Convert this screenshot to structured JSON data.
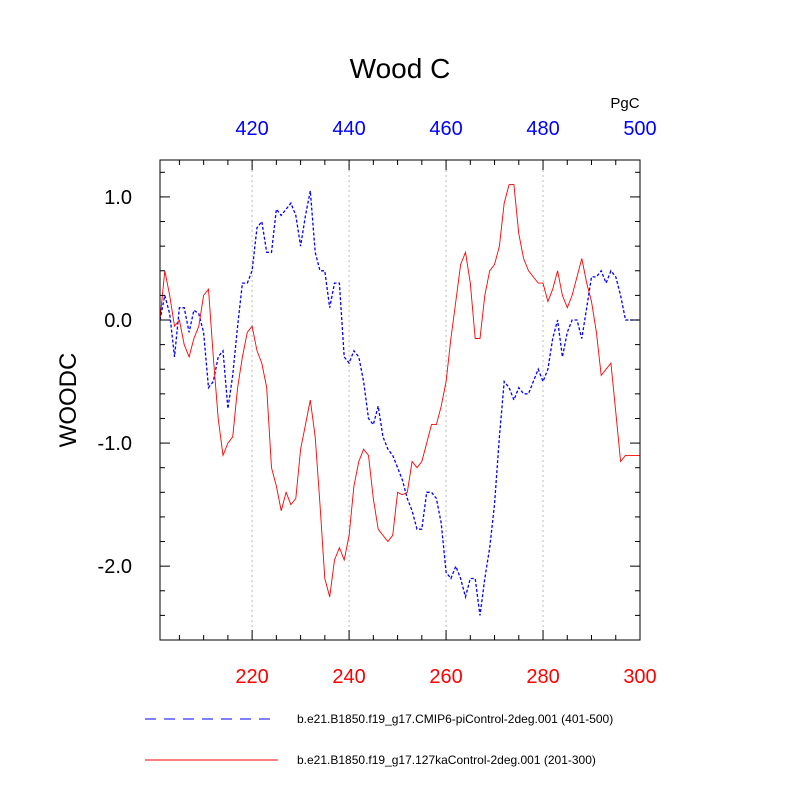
{
  "chart_data": {
    "type": "line",
    "title": "Wood C",
    "ylabel": "WOODC",
    "units": "PgC",
    "ylim": [
      -2.6,
      1.3
    ],
    "yticks": [
      1.0,
      0.0,
      -1.0,
      -2.0
    ],
    "ytick_labels": [
      "1.0",
      "0.0",
      "-1.0",
      "-2.0"
    ],
    "bottom_axis": {
      "range": [
        201,
        300
      ],
      "ticks": [
        220,
        240,
        260,
        280,
        300
      ],
      "color": "#ff0000"
    },
    "top_axis": {
      "range": [
        401,
        500
      ],
      "ticks": [
        420,
        440,
        460,
        480,
        500
      ],
      "color": "#0000ff"
    },
    "gridlines_at_major_ticks": true,
    "series": [
      {
        "name": "b.e21.B1850.f19_g17.CMIP6-piControl-2deg.001 (401-500)",
        "axis": "top",
        "color": "#0000ff",
        "dash": "dashed",
        "x": [
          401,
          402,
          403,
          404,
          405,
          406,
          407,
          408,
          409,
          410,
          411,
          412,
          413,
          414,
          415,
          416,
          417,
          418,
          419,
          420,
          421,
          422,
          423,
          424,
          425,
          426,
          427,
          428,
          429,
          430,
          431,
          432,
          433,
          434,
          435,
          436,
          437,
          438,
          439,
          440,
          441,
          442,
          443,
          444,
          445,
          446,
          447,
          448,
          449,
          450,
          451,
          452,
          453,
          454,
          455,
          456,
          457,
          458,
          459,
          460,
          461,
          462,
          463,
          464,
          465,
          466,
          467,
          468,
          469,
          470,
          471,
          472,
          473,
          474,
          475,
          476,
          477,
          478,
          479,
          480,
          481,
          482,
          483,
          484,
          485,
          486,
          487,
          488,
          489,
          490,
          491,
          492,
          493,
          494,
          495,
          496,
          497,
          498,
          499,
          500
        ],
        "values": [
          0.0,
          0.2,
          0.05,
          -0.3,
          0.1,
          0.1,
          -0.1,
          0.08,
          0.05,
          -0.1,
          -0.55,
          -0.5,
          -0.3,
          -0.25,
          -0.72,
          -0.45,
          -0.05,
          0.3,
          0.3,
          0.4,
          0.75,
          0.8,
          0.55,
          0.55,
          0.9,
          0.85,
          0.9,
          0.95,
          0.85,
          0.6,
          0.85,
          1.05,
          0.55,
          0.4,
          0.4,
          0.1,
          0.3,
          0.3,
          -0.3,
          -0.35,
          -0.25,
          -0.3,
          -0.5,
          -0.8,
          -0.85,
          -0.7,
          -0.95,
          -1.05,
          -1.1,
          -1.2,
          -1.3,
          -1.45,
          -1.55,
          -1.7,
          -1.7,
          -1.4,
          -1.4,
          -1.45,
          -1.65,
          -2.05,
          -2.1,
          -2.0,
          -2.1,
          -2.25,
          -2.1,
          -2.1,
          -2.4,
          -2.1,
          -1.85,
          -1.5,
          -0.95,
          -0.5,
          -0.55,
          -0.65,
          -0.55,
          -0.6,
          -0.6,
          -0.5,
          -0.4,
          -0.5,
          -0.4,
          -0.15,
          0.0,
          -0.3,
          -0.1,
          0.0,
          0.0,
          -0.15,
          0.1,
          0.35,
          0.35,
          0.4,
          0.3,
          0.4,
          0.35,
          0.2,
          0.0,
          0.0,
          0.0,
          0.0
        ]
      },
      {
        "name": "b.e21.B1850.f19_g17.127kaControl-2deg.001 (201-300)",
        "axis": "bottom",
        "color": "#ff0000",
        "dash": "solid",
        "x": [
          201,
          202,
          203,
          204,
          205,
          206,
          207,
          208,
          209,
          210,
          211,
          212,
          213,
          214,
          215,
          216,
          217,
          218,
          219,
          220,
          221,
          222,
          223,
          224,
          225,
          226,
          227,
          228,
          229,
          230,
          231,
          232,
          233,
          234,
          235,
          236,
          237,
          238,
          239,
          240,
          241,
          242,
          243,
          244,
          245,
          246,
          247,
          248,
          249,
          250,
          251,
          252,
          253,
          254,
          255,
          256,
          257,
          258,
          259,
          260,
          261,
          262,
          263,
          264,
          265,
          266,
          267,
          268,
          269,
          270,
          271,
          272,
          273,
          274,
          275,
          276,
          277,
          278,
          279,
          280,
          281,
          282,
          283,
          284,
          285,
          286,
          287,
          288,
          289,
          290,
          291,
          292,
          293,
          294,
          295,
          296,
          297,
          298,
          299,
          300
        ],
        "values": [
          0.0,
          0.4,
          0.2,
          -0.05,
          0.0,
          -0.2,
          -0.3,
          -0.15,
          -0.05,
          0.2,
          0.25,
          -0.3,
          -0.8,
          -1.1,
          -1.0,
          -0.95,
          -0.55,
          -0.3,
          -0.1,
          -0.05,
          -0.25,
          -0.35,
          -0.55,
          -1.2,
          -1.35,
          -1.55,
          -1.4,
          -1.5,
          -1.45,
          -1.05,
          -0.85,
          -0.65,
          -0.95,
          -1.5,
          -2.1,
          -2.25,
          -1.95,
          -1.85,
          -1.95,
          -1.75,
          -1.35,
          -1.15,
          -1.05,
          -1.1,
          -1.45,
          -1.7,
          -1.75,
          -1.8,
          -1.75,
          -1.4,
          -1.42,
          -1.4,
          -1.15,
          -1.2,
          -1.15,
          -1.0,
          -0.85,
          -0.85,
          -0.7,
          -0.5,
          -0.15,
          0.15,
          0.45,
          0.55,
          0.3,
          -0.15,
          -0.15,
          0.2,
          0.4,
          0.45,
          0.6,
          0.95,
          1.1,
          1.1,
          0.7,
          0.5,
          0.4,
          0.35,
          0.3,
          0.3,
          0.15,
          0.25,
          0.4,
          0.2,
          0.1,
          0.2,
          0.35,
          0.5,
          0.3,
          0.15,
          -0.1,
          -0.45,
          -0.4,
          -0.35,
          -0.75,
          -1.15,
          -1.1,
          -1.1,
          -1.1,
          -1.1
        ]
      }
    ],
    "legend_position": "bottom"
  }
}
